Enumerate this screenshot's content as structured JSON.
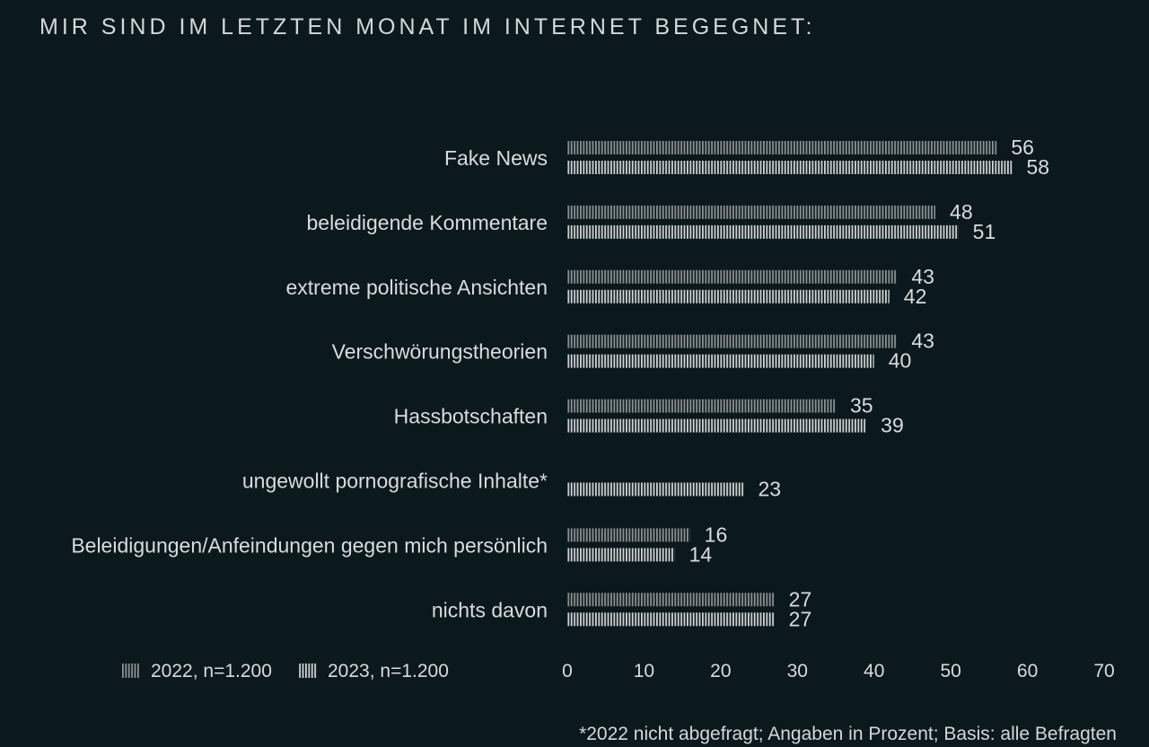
{
  "chart_data": {
    "type": "bar",
    "orientation": "horizontal",
    "title": "MIR SIND IM LETZTEN MONAT IM INTERNET BEGEGNET:",
    "categories": [
      "Fake News",
      "beleidigende Kommentare",
      "extreme politische Ansichten",
      "Verschwörungstheorien",
      "Hassbotschaften",
      "ungewollt pornografische Inhalte*",
      "Beleidigungen/Anfeindungen gegen mich persönlich",
      "nichts davon"
    ],
    "series": [
      {
        "name": "2022, n=1.200",
        "color": "#8c9292",
        "values": [
          56,
          48,
          43,
          43,
          35,
          null,
          16,
          27
        ]
      },
      {
        "name": "2023, n=1.200",
        "color": "#d0d4d4",
        "values": [
          58,
          51,
          42,
          40,
          39,
          23,
          14,
          27
        ]
      }
    ],
    "xlim": [
      0,
      70
    ],
    "xticks": [
      0,
      10,
      20,
      30,
      40,
      50,
      60,
      70
    ],
    "grid": false,
    "legend": "bottom-left",
    "bar_style": "vertical-striped",
    "footnote": "*2022 nicht abgefragt; Angaben in Prozent; Basis: alle Befragten"
  }
}
